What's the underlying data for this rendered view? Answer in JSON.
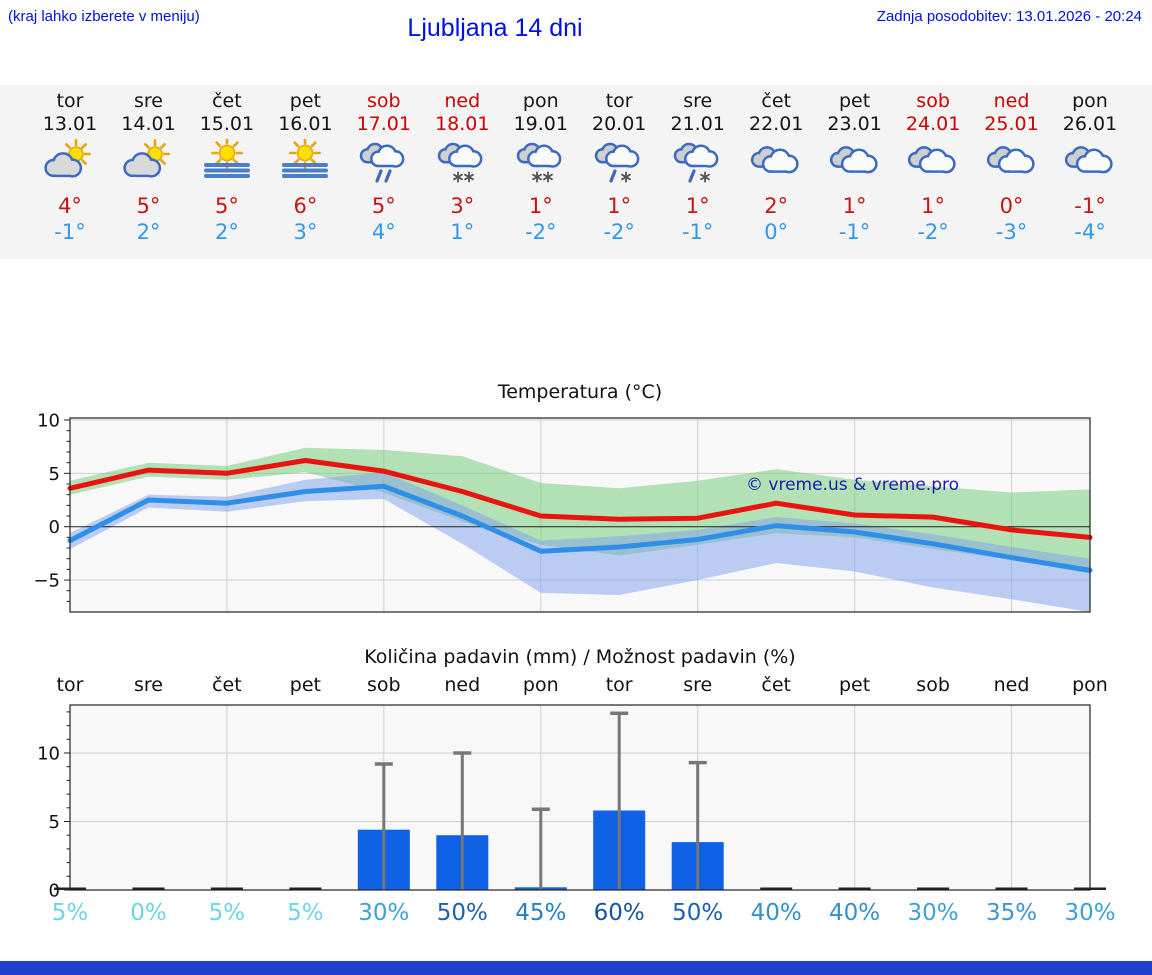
{
  "header": {
    "note": "(kraj lahko izberete v meniju)",
    "title": "Ljubljana 14 dni",
    "updated": "Zadnja posodobitev: 13.01.2026 - 20:24"
  },
  "watermark": "© vreme.us & vreme.pro",
  "colors": {
    "link_blue": "#0010dd",
    "hot_red": "#c81414",
    "cold_blue": "#2f99ee",
    "weekend_red": "#cc0000",
    "bar_blue": "#0f62e6",
    "line_red": "#e81410",
    "line_blue": "#2f8fe8",
    "band_green": "rgba(120,205,125,0.55)",
    "band_blue": "rgba(125,160,235,0.50)",
    "strip_bg": "#f4f4f4",
    "plot_bg": "#f8f8f8",
    "grid_gray": "#cfcfcf",
    "whisker_gray": "#777777",
    "watermark_blue": "#1a1aa8",
    "footer_blue": "#2040d0"
  },
  "forecast": {
    "days": [
      {
        "name": "tor",
        "date": "13.01",
        "weekend": false,
        "icon": "partly-cloudy",
        "high": "4°",
        "low": "-1°"
      },
      {
        "name": "sre",
        "date": "14.01",
        "weekend": false,
        "icon": "partly-cloudy",
        "high": "5°",
        "low": "2°"
      },
      {
        "name": "čet",
        "date": "15.01",
        "weekend": false,
        "icon": "fog-sun",
        "high": "5°",
        "low": "2°"
      },
      {
        "name": "pet",
        "date": "16.01",
        "weekend": false,
        "icon": "fog-sun",
        "high": "6°",
        "low": "3°"
      },
      {
        "name": "sob",
        "date": "17.01",
        "weekend": true,
        "icon": "rain",
        "high": "5°",
        "low": "4°"
      },
      {
        "name": "ned",
        "date": "18.01",
        "weekend": true,
        "icon": "snow",
        "high": "3°",
        "low": "1°"
      },
      {
        "name": "pon",
        "date": "19.01",
        "weekend": false,
        "icon": "snow",
        "high": "1°",
        "low": "-2°"
      },
      {
        "name": "tor",
        "date": "20.01",
        "weekend": false,
        "icon": "sleet",
        "high": "1°",
        "low": "-2°"
      },
      {
        "name": "sre",
        "date": "21.01",
        "weekend": false,
        "icon": "sleet",
        "high": "1°",
        "low": "-1°"
      },
      {
        "name": "čet",
        "date": "22.01",
        "weekend": false,
        "icon": "cloudy",
        "high": "2°",
        "low": "0°"
      },
      {
        "name": "pet",
        "date": "23.01",
        "weekend": false,
        "icon": "cloudy",
        "high": "1°",
        "low": "-1°"
      },
      {
        "name": "sob",
        "date": "24.01",
        "weekend": true,
        "icon": "cloudy",
        "high": "1°",
        "low": "-2°"
      },
      {
        "name": "ned",
        "date": "25.01",
        "weekend": true,
        "icon": "cloudy",
        "high": "0°",
        "low": "-3°"
      },
      {
        "name": "pon",
        "date": "26.01",
        "weekend": false,
        "icon": "cloudy",
        "high": "-1°",
        "low": "-4°"
      }
    ]
  },
  "chart_data": [
    {
      "type": "line",
      "title": "Temperatura (°C)",
      "days": [
        "13.01",
        "14.01",
        "15.01",
        "16.01",
        "17.01",
        "18.01",
        "19.01",
        "20.01",
        "21.01",
        "22.01",
        "23.01",
        "24.01",
        "25.01",
        "26.01"
      ],
      "ylim": [
        -8,
        10.5
      ],
      "yticks": [
        "10",
        "5",
        "0",
        "−5"
      ],
      "ytick_values": [
        10,
        5,
        0,
        -5
      ],
      "grid": true,
      "annotation": "© vreme.us & vreme.pro",
      "series": [
        {
          "name": "max-temperature",
          "color": "#e81410",
          "values": [
            3.6,
            5.3,
            5.0,
            6.2,
            5.2,
            3.3,
            1.0,
            0.7,
            0.8,
            2.2,
            1.1,
            0.9,
            -0.3,
            -1.0
          ]
        },
        {
          "name": "min-temperature",
          "color": "#2f8fe8",
          "values": [
            -1.3,
            2.5,
            2.2,
            3.3,
            3.8,
            1.0,
            -2.3,
            -1.9,
            -1.2,
            0.1,
            -0.5,
            -1.6,
            -2.9,
            -4.1
          ]
        }
      ],
      "bands": [
        {
          "name": "max-temperature-range",
          "color": "rgba(120,205,125,0.55)",
          "upper": [
            4.3,
            6.0,
            5.7,
            7.4,
            7.2,
            6.6,
            4.1,
            3.6,
            4.3,
            5.4,
            4.4,
            3.8,
            3.2,
            3.5
          ],
          "lower": [
            3.0,
            4.7,
            4.4,
            5.1,
            3.2,
            0.5,
            -1.7,
            -2.7,
            -1.7,
            -0.6,
            -1.0,
            -2.1,
            -3.1,
            -4.4
          ]
        },
        {
          "name": "min-temperature-range",
          "color": "rgba(125,160,235,0.50)",
          "upper": [
            -0.6,
            3.0,
            2.8,
            4.4,
            5.1,
            2.0,
            -1.3,
            -0.9,
            -0.3,
            0.9,
            0.3,
            -0.7,
            -1.9,
            -3.0
          ],
          "lower": [
            -2.1,
            1.8,
            1.4,
            2.4,
            2.6,
            -1.6,
            -6.2,
            -6.4,
            -5.0,
            -3.4,
            -4.2,
            -5.7,
            -6.8,
            -8.3
          ]
        }
      ]
    },
    {
      "type": "bar",
      "title": "Količina padavin (mm) / Možnost padavin (%)",
      "categories": [
        "tor",
        "sre",
        "čet",
        "pet",
        "sob",
        "ned",
        "pon",
        "tor",
        "sre",
        "čet",
        "pet",
        "sob",
        "ned",
        "pon"
      ],
      "values_mm": [
        0,
        0,
        0,
        0,
        4.4,
        4.0,
        0.2,
        5.8,
        3.5,
        0,
        0,
        0,
        0,
        0
      ],
      "whisker_max_mm": [
        0,
        0,
        0,
        0,
        9.2,
        10.0,
        5.9,
        12.9,
        9.3,
        0,
        0,
        0,
        0,
        0
      ],
      "probability_pct": [
        5,
        0,
        5,
        5,
        30,
        50,
        45,
        60,
        50,
        40,
        40,
        30,
        35,
        30
      ],
      "probability_labels": [
        "5%",
        "0%",
        "5%",
        "5%",
        "30%",
        "50%",
        "45%",
        "60%",
        "50%",
        "40%",
        "40%",
        "30%",
        "35%",
        "30%"
      ],
      "probability_colors": [
        "#6fd4e4",
        "#6fd4e4",
        "#6fd4e4",
        "#6fd4e4",
        "#3fa0d6",
        "#1b61ae",
        "#2a7dc4",
        "#14569e",
        "#1b61ae",
        "#3590cc",
        "#3590cc",
        "#3fa0d6",
        "#3b97d0",
        "#3fa0d6"
      ],
      "ylim": [
        0,
        13.5
      ],
      "yticks": [
        "0",
        "5",
        "10"
      ],
      "ytick_values": [
        0,
        5,
        10
      ],
      "bar_color": "#0f62e6",
      "grid": true
    }
  ]
}
